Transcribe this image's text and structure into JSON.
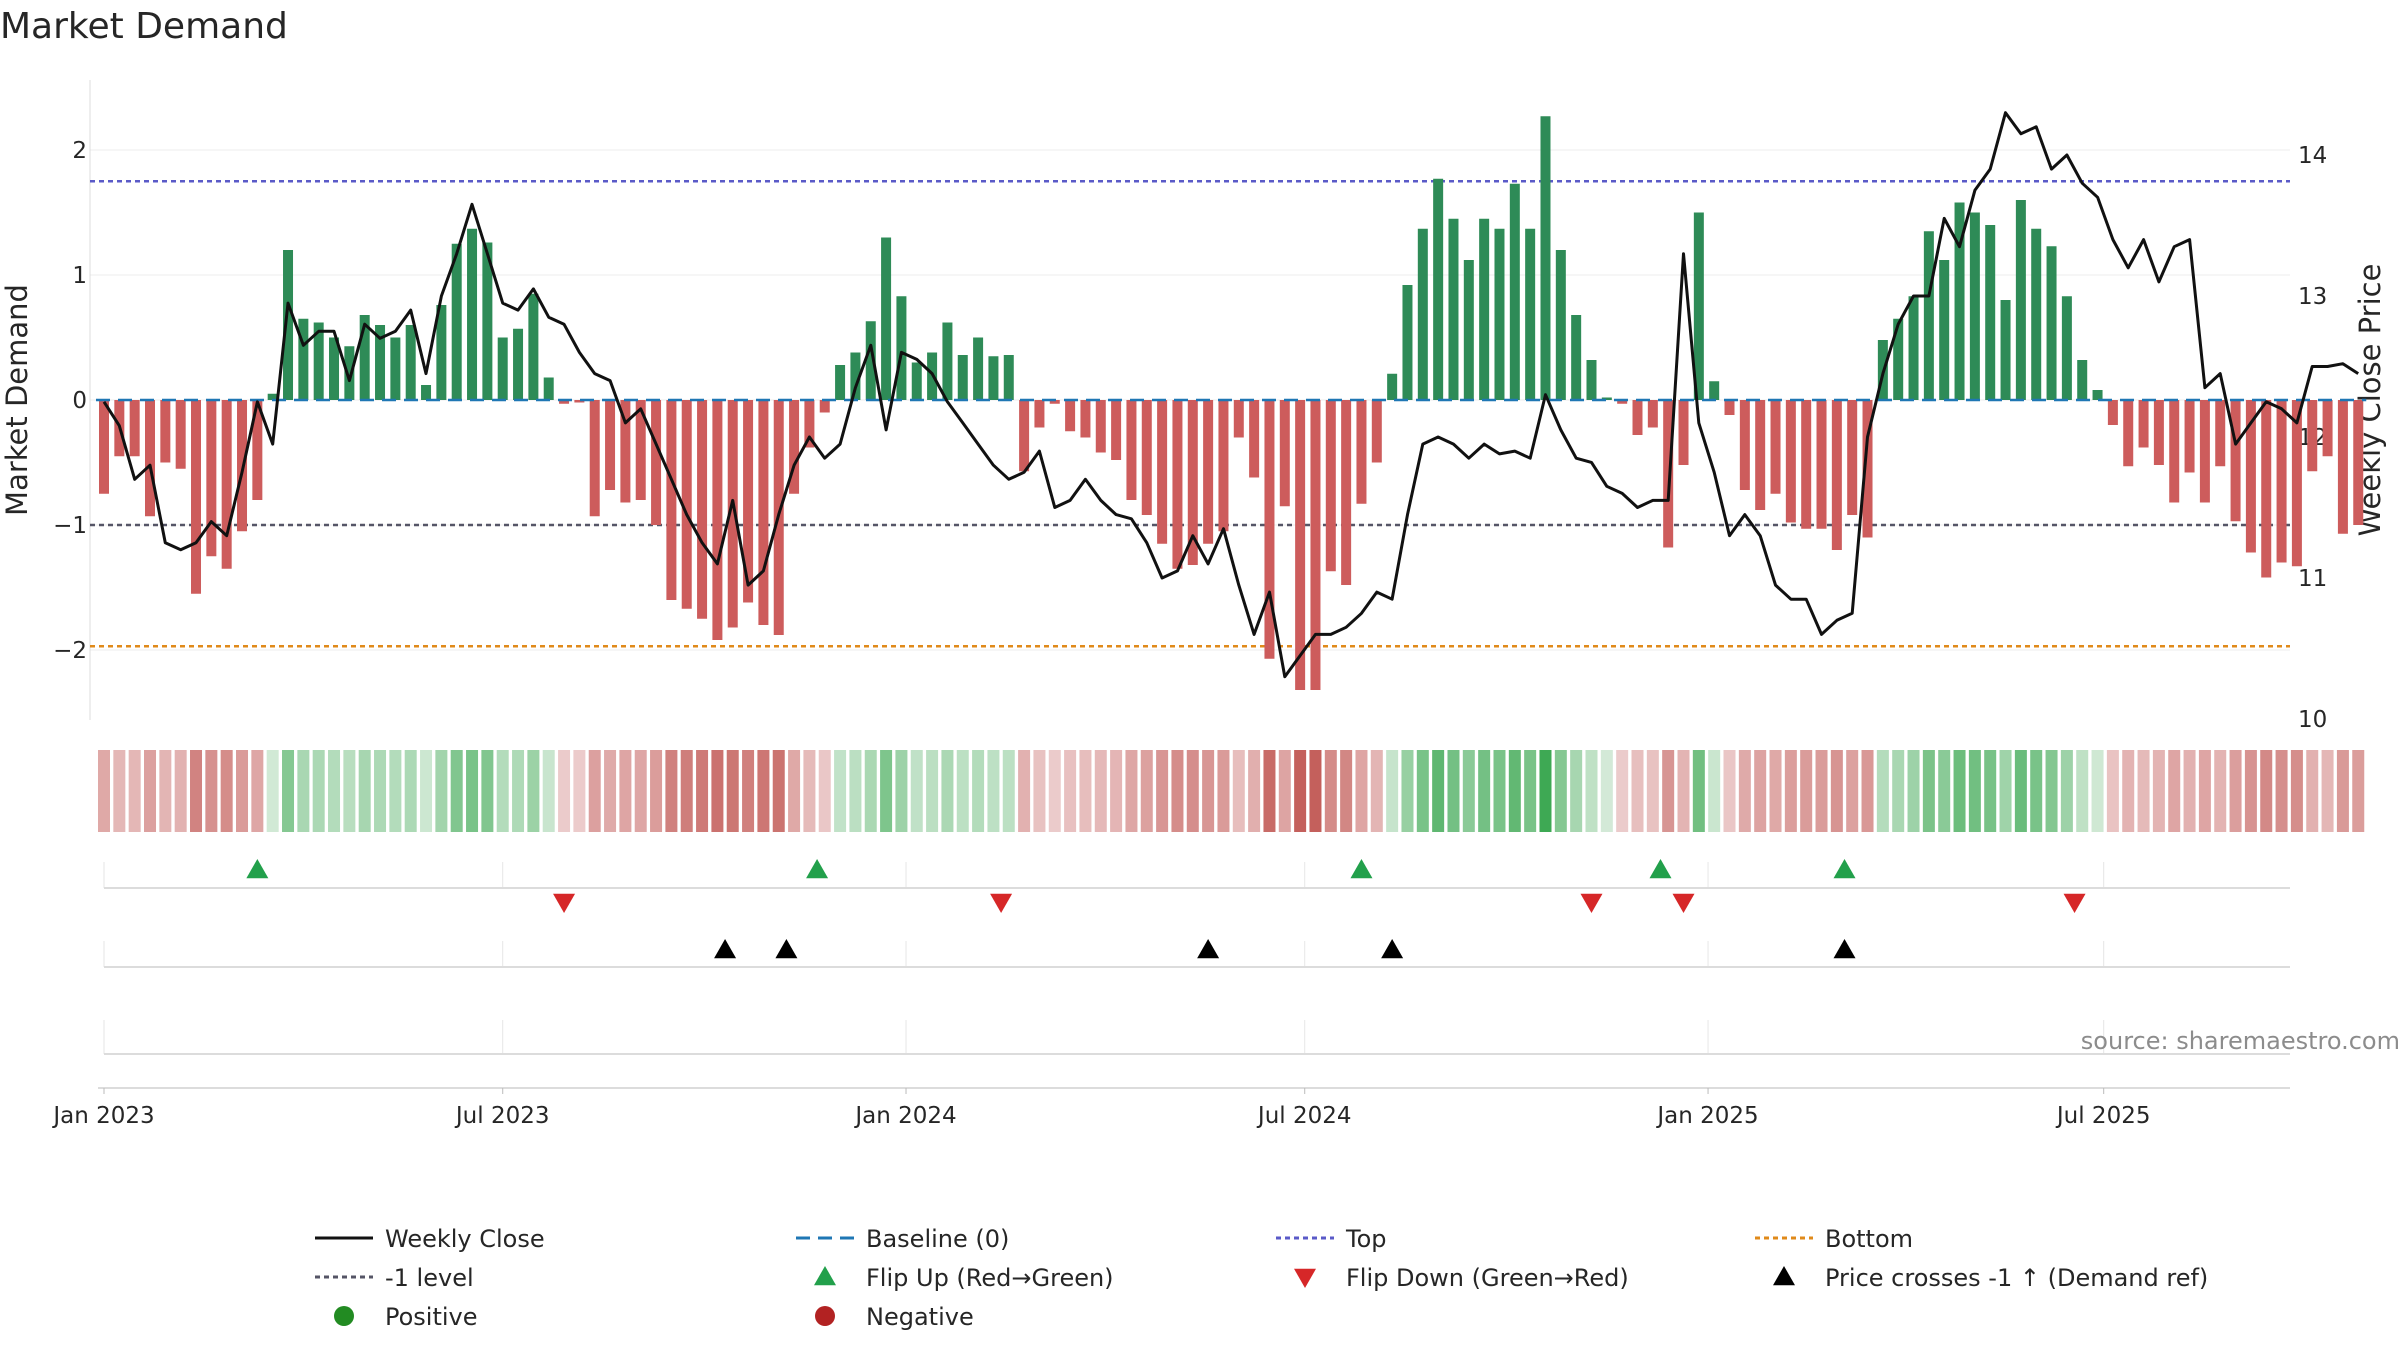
{
  "chart_data": {
    "type": "bar",
    "title": "Market Demand",
    "ylabel": "Market Demand",
    "y2label": "Weekly Close Price",
    "ylim": [
      -2.55,
      2.55
    ],
    "y2lim": [
      10.0,
      14.5
    ],
    "yticks": [
      2,
      1,
      0,
      -1,
      -2
    ],
    "ytick_labels": [
      "2",
      "1",
      "0",
      "−1",
      "−2"
    ],
    "y2ticks": [
      14,
      13,
      12,
      11,
      10
    ],
    "y2tick_labels": [
      "14",
      "13",
      "12",
      "11",
      "10"
    ],
    "xticks": [
      {
        "label": "Jan 2023",
        "week": 0
      },
      {
        "label": "Jul 2023",
        "week": 26
      },
      {
        "label": "Jan 2024",
        "week": 52.3
      },
      {
        "label": "Jul 2024",
        "week": 78.3
      },
      {
        "label": "Jan 2025",
        "week": 104.6
      },
      {
        "label": "Jul 2025",
        "week": 130.4
      }
    ],
    "levels": {
      "top": 1.75,
      "minus_one": -1.0,
      "bottom": -1.97,
      "baseline": 0
    },
    "demand": [
      -0.75,
      -0.45,
      -0.45,
      -0.93,
      -0.5,
      -0.55,
      -1.55,
      -1.25,
      -1.35,
      -1.05,
      -0.8,
      0.05,
      1.2,
      0.65,
      0.62,
      0.5,
      0.43,
      0.68,
      0.6,
      0.5,
      0.6,
      0.12,
      0.76,
      1.25,
      1.37,
      1.26,
      0.5,
      0.57,
      0.85,
      0.18,
      -0.03,
      -0.02,
      -0.93,
      -0.72,
      -0.82,
      -0.8,
      -1.0,
      -1.6,
      -1.67,
      -1.75,
      -1.92,
      -1.82,
      -1.62,
      -1.8,
      -1.88,
      -0.75,
      -0.38,
      -0.1,
      0.28,
      0.38,
      0.63,
      1.3,
      0.83,
      0.3,
      0.38,
      0.62,
      0.36,
      0.5,
      0.35,
      0.36,
      -0.57,
      -0.22,
      -0.03,
      -0.25,
      -0.3,
      -0.42,
      -0.48,
      -0.8,
      -0.92,
      -1.15,
      -1.35,
      -1.32,
      -1.15,
      -1.05,
      -0.3,
      -0.62,
      -2.07,
      -0.85,
      -2.32,
      -2.32,
      -1.37,
      -1.48,
      -0.83,
      -0.5,
      0.21,
      0.92,
      1.37,
      1.77,
      1.45,
      1.12,
      1.45,
      1.37,
      1.73,
      1.37,
      2.27,
      1.2,
      0.68,
      0.32,
      0.02,
      -0.03,
      -0.28,
      -0.22,
      -1.18,
      -0.52,
      1.5,
      0.15,
      -0.12,
      -0.72,
      -0.88,
      -0.75,
      -0.98,
      -1.03,
      -1.03,
      -1.2,
      -0.92,
      -1.1,
      0.48,
      0.65,
      0.83,
      1.35,
      1.12,
      1.58,
      1.5,
      1.4,
      0.8,
      1.6,
      1.37,
      1.23,
      0.83,
      0.32,
      0.08,
      -0.2,
      -0.53,
      -0.38,
      -0.52,
      -0.82,
      -0.58,
      -0.82,
      -0.53,
      -0.97,
      -1.22,
      -1.42,
      -1.3,
      -1.33,
      -0.57,
      -0.45,
      -1.07,
      -1.0
    ],
    "weekly_close": [
      12.25,
      12.08,
      11.7,
      11.8,
      11.25,
      11.2,
      11.25,
      11.4,
      11.3,
      11.75,
      12.25,
      11.95,
      12.95,
      12.65,
      12.75,
      12.75,
      12.4,
      12.8,
      12.7,
      12.75,
      12.9,
      12.45,
      13.0,
      13.3,
      13.65,
      13.3,
      12.95,
      12.9,
      13.05,
      12.85,
      12.8,
      12.6,
      12.45,
      12.4,
      12.1,
      12.2,
      11.95,
      11.7,
      11.45,
      11.25,
      11.1,
      11.55,
      10.95,
      11.05,
      11.45,
      11.8,
      12.0,
      11.85,
      11.95,
      12.35,
      12.65,
      12.05,
      12.6,
      12.55,
      12.45,
      12.25,
      12.1,
      11.95,
      11.8,
      11.7,
      11.75,
      11.9,
      11.5,
      11.55,
      11.7,
      11.55,
      11.45,
      11.42,
      11.25,
      11.0,
      11.05,
      11.3,
      11.1,
      11.35,
      10.95,
      10.6,
      10.9,
      10.3,
      10.45,
      10.6,
      10.6,
      10.65,
      10.75,
      10.9,
      10.85,
      11.45,
      11.95,
      12.0,
      11.95,
      11.85,
      11.95,
      11.88,
      11.9,
      11.85,
      12.3,
      12.05,
      11.85,
      11.82,
      11.65,
      11.6,
      11.5,
      11.55,
      11.55,
      13.3,
      12.1,
      11.75,
      11.3,
      11.45,
      11.3,
      10.95,
      10.85,
      10.85,
      10.6,
      10.7,
      10.75,
      12.0,
      12.45,
      12.8,
      13.0,
      13.0,
      13.55,
      13.35,
      13.75,
      13.9,
      14.3,
      14.15,
      14.2,
      13.9,
      14.0,
      13.8,
      13.7,
      13.4,
      13.2,
      13.4,
      13.1,
      13.35,
      13.4,
      12.35,
      12.45,
      11.95,
      12.1,
      12.25,
      12.2,
      12.1,
      12.5,
      12.5,
      12.52,
      12.45
    ],
    "flip_up_weeks": [
      10,
      46.5,
      82,
      101.5,
      113.5
    ],
    "flip_down_weeks": [
      30,
      58.5,
      97,
      103,
      128.5
    ],
    "price_cross_weeks": [
      40.5,
      44.5,
      72,
      84,
      113.5
    ],
    "source": "source: sharemaestro.com",
    "legend": [
      {
        "label": "Weekly Close",
        "kind": "line",
        "color": "#111111"
      },
      {
        "label": "Baseline (0)",
        "kind": "dash",
        "color": "#1f77b4"
      },
      {
        "label": "Top",
        "kind": "dot",
        "color": "#5a5ac8"
      },
      {
        "label": "Bottom",
        "kind": "dot",
        "color": "#e08a1a"
      },
      {
        "label": "-1 level",
        "kind": "dot",
        "color": "#555566"
      },
      {
        "label": "Flip Up (Red→Green)",
        "kind": "tri-up",
        "color": "#22a04b"
      },
      {
        "label": "Flip Down (Green→Red)",
        "kind": "tri-down",
        "color": "#d62728"
      },
      {
        "label": "Price crosses -1 ↑ (Demand ref)",
        "kind": "tri-up",
        "color": "#000000"
      },
      {
        "label": "Positive",
        "kind": "circle",
        "color": "#228b22"
      },
      {
        "label": "Negative",
        "kind": "circle",
        "color": "#b22222"
      }
    ],
    "colors": {
      "positive": "#2e8b57",
      "negative": "#cd5c5c",
      "price": "#111111"
    }
  }
}
